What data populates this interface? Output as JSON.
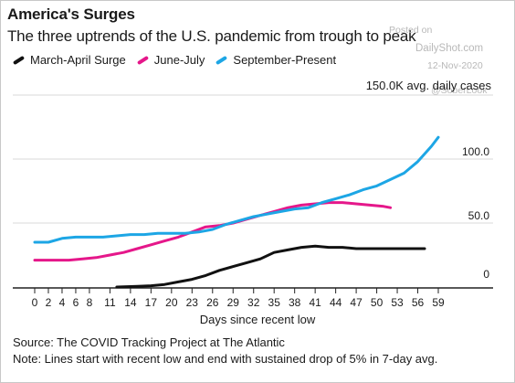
{
  "title": "America's Surges",
  "subtitle": "The three uptrends of the U.S. pandemic from trough to peak",
  "watermark": {
    "posted": "Posted on",
    "site": "DailyShot.com",
    "date": "12-Nov-2020",
    "handle": "@SoberLook"
  },
  "source": "Source: The COVID Tracking Project at The Atlantic",
  "note": "Note: Lines start with recent low and end with sustained drop of 5% in 7-day avg.",
  "colors": {
    "march_april": "#111111",
    "june_july": "#e5178a",
    "september_present": "#1da6e5",
    "grid": "#d9d9d9",
    "axis": "#222222"
  },
  "chart_data": {
    "type": "line",
    "title": "America's Surges",
    "subtitle": "The three uptrends of the U.S. pandemic from trough to peak",
    "xlabel": "Days since recent low",
    "ylabel": "150.0K avg. daily cases",
    "xlim": [
      0,
      59
    ],
    "ylim": [
      0,
      150
    ],
    "x_ticks": [
      0,
      2,
      4,
      6,
      8,
      11,
      14,
      17,
      20,
      23,
      26,
      29,
      32,
      35,
      38,
      41,
      44,
      47,
      50,
      53,
      56,
      59
    ],
    "y_ticks": [
      {
        "value": 0,
        "label": "0"
      },
      {
        "value": 50,
        "label": "50.0"
      },
      {
        "value": 100,
        "label": "100.0"
      }
    ],
    "grid": true,
    "legend_position": "top-left",
    "series": [
      {
        "name": "March-April Surge",
        "color": "#111111",
        "points": [
          [
            12,
            0
          ],
          [
            15,
            0.5
          ],
          [
            17,
            1
          ],
          [
            19,
            2
          ],
          [
            21,
            4
          ],
          [
            23,
            6
          ],
          [
            25,
            9
          ],
          [
            27,
            13
          ],
          [
            29,
            16
          ],
          [
            31,
            19
          ],
          [
            33,
            22
          ],
          [
            35,
            27
          ],
          [
            37,
            29
          ],
          [
            39,
            31
          ],
          [
            41,
            32
          ],
          [
            43,
            31
          ],
          [
            45,
            31
          ],
          [
            47,
            30
          ],
          [
            49,
            30
          ],
          [
            51,
            30
          ],
          [
            53,
            30
          ],
          [
            55,
            30
          ],
          [
            57,
            30
          ]
        ]
      },
      {
        "name": "June-July",
        "color": "#e5178a",
        "points": [
          [
            0,
            21
          ],
          [
            3,
            21
          ],
          [
            5,
            21
          ],
          [
            7,
            22
          ],
          [
            9,
            23
          ],
          [
            11,
            25
          ],
          [
            13,
            27
          ],
          [
            15,
            30
          ],
          [
            17,
            33
          ],
          [
            19,
            36
          ],
          [
            21,
            39
          ],
          [
            23,
            43
          ],
          [
            25,
            47
          ],
          [
            27,
            48
          ],
          [
            29,
            50
          ],
          [
            31,
            53
          ],
          [
            33,
            56
          ],
          [
            35,
            59
          ],
          [
            37,
            62
          ],
          [
            39,
            64
          ],
          [
            41,
            65
          ],
          [
            43,
            66
          ],
          [
            45,
            66
          ],
          [
            47,
            65
          ],
          [
            49,
            64
          ],
          [
            51,
            63
          ],
          [
            52,
            62
          ]
        ]
      },
      {
        "name": "September-Present",
        "color": "#1da6e5",
        "points": [
          [
            0,
            35
          ],
          [
            2,
            35
          ],
          [
            4,
            38
          ],
          [
            6,
            39
          ],
          [
            8,
            39
          ],
          [
            10,
            39
          ],
          [
            12,
            40
          ],
          [
            14,
            41
          ],
          [
            16,
            41
          ],
          [
            18,
            42
          ],
          [
            20,
            42
          ],
          [
            22,
            42
          ],
          [
            24,
            43
          ],
          [
            26,
            45
          ],
          [
            28,
            49
          ],
          [
            30,
            52
          ],
          [
            32,
            55
          ],
          [
            34,
            57
          ],
          [
            36,
            59
          ],
          [
            38,
            61
          ],
          [
            40,
            62
          ],
          [
            42,
            66
          ],
          [
            44,
            69
          ],
          [
            46,
            72
          ],
          [
            48,
            76
          ],
          [
            50,
            79
          ],
          [
            52,
            84
          ],
          [
            54,
            89
          ],
          [
            56,
            98
          ],
          [
            58,
            110
          ],
          [
            59,
            117
          ]
        ]
      }
    ]
  }
}
